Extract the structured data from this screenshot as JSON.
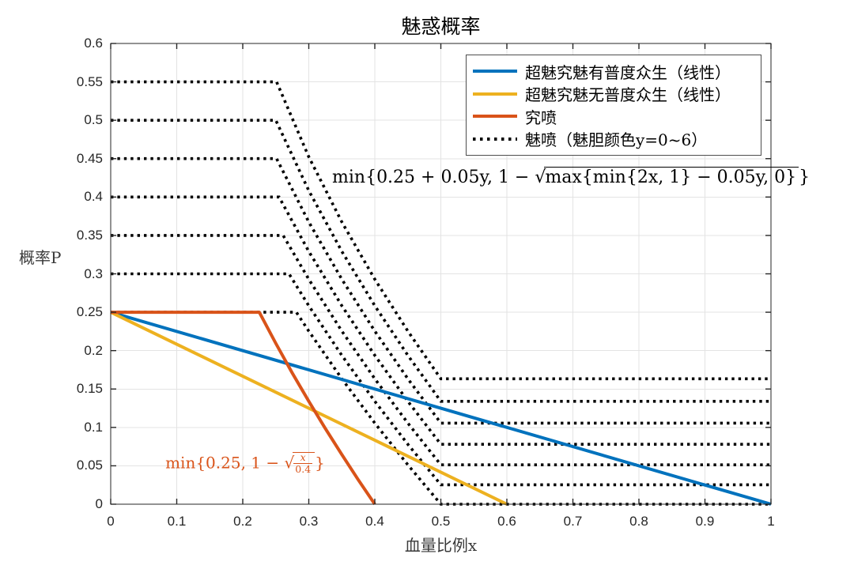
{
  "title": "魅惑概率",
  "axes": {
    "x": {
      "label": "血量比例x"
    },
    "y": {
      "label": "概率P"
    }
  },
  "annotations": {
    "main_formula": {
      "prefix": "min{0.25 + 0.05y, 1 − ",
      "sqrt_sign": "√",
      "radicand": "max{min{2x, 1} − 0.05y, 0}",
      "suffix": "}",
      "color": "#000000"
    },
    "orange_formula": {
      "prefix": "min{0.25, 1 − ",
      "sqrt_sign": "√",
      "frac_numerator": "x",
      "frac_denominator": "0.4",
      "suffix": "}",
      "color": "#d95319"
    }
  },
  "chart_data": {
    "type": "line",
    "title": "魅惑概率",
    "xlabel": "血量比例x",
    "ylabel": "概率P",
    "xlim": [
      0,
      1
    ],
    "ylim": [
      0,
      0.6
    ],
    "x_ticks": [
      0,
      0.1,
      0.2,
      0.3,
      0.4,
      0.5,
      0.6,
      0.7,
      0.8,
      0.9,
      1
    ],
    "y_ticks": [
      0,
      0.05,
      0.1,
      0.15,
      0.2,
      0.25,
      0.3,
      0.35,
      0.4,
      0.45,
      0.5,
      0.55,
      0.6
    ],
    "grid": true,
    "grid_color": "#e3e3e3",
    "axis_color": "#262626",
    "legend_position": "top-right",
    "series": [
      {
        "name": "超魅究魅有普度众生（线性）",
        "color": "#0072bd",
        "style": "solid",
        "points": [
          [
            0,
            0.25
          ],
          [
            1,
            0
          ]
        ]
      },
      {
        "name": "超魅究魅无普度众生（线性）",
        "color": "#edb120",
        "style": "solid",
        "points": [
          [
            0,
            0.25
          ],
          [
            0.6,
            0
          ]
        ]
      },
      {
        "name": "究喷",
        "color": "#d95319",
        "style": "solid",
        "formula": "min{0.25, 1 − sqrt(x/0.4)}",
        "points": [
          [
            0,
            0.25
          ],
          [
            0.225,
            0.25
          ],
          [
            0.25,
            0.2094
          ],
          [
            0.275,
            0.1708
          ],
          [
            0.3,
            0.134
          ],
          [
            0.325,
            0.0986
          ],
          [
            0.35,
            0.0646
          ],
          [
            0.375,
            0.0317
          ],
          [
            0.4,
            0
          ]
        ]
      },
      {
        "name": "魅喷（魅胆颜色y=0~6）",
        "color": "#000000",
        "style": "dotted",
        "formula": "min{0.25 + 0.05y, 1 − sqrt(max{min{2x,1} − 0.05y, 0})}",
        "curves": [
          {
            "y": 0,
            "points": [
              [
                0,
                0.25
              ],
              [
                0.28125,
                0.25
              ],
              [
                0.3,
                0.2254
              ],
              [
                0.35,
                0.1633
              ],
              [
                0.4,
                0.1056
              ],
              [
                0.45,
                0.0513
              ],
              [
                0.5,
                0
              ],
              [
                1,
                0
              ]
            ]
          },
          {
            "y": 1,
            "points": [
              [
                0,
                0.3
              ],
              [
                0.27,
                0.3
              ],
              [
                0.3,
                0.2584
              ],
              [
                0.35,
                0.1938
              ],
              [
                0.4,
                0.134
              ],
              [
                0.45,
                0.078
              ],
              [
                0.5,
                0.0253
              ],
              [
                1,
                0.0253
              ]
            ]
          },
          {
            "y": 2,
            "points": [
              [
                0,
                0.35
              ],
              [
                0.26125,
                0.35
              ],
              [
                0.3,
                0.2929
              ],
              [
                0.35,
                0.2254
              ],
              [
                0.4,
                0.1633
              ],
              [
                0.45,
                0.1056
              ],
              [
                0.5,
                0.0513
              ],
              [
                1,
                0.0513
              ]
            ]
          },
          {
            "y": 3,
            "points": [
              [
                0,
                0.4
              ],
              [
                0.255,
                0.4
              ],
              [
                0.3,
                0.3292
              ],
              [
                0.35,
                0.2584
              ],
              [
                0.4,
                0.1938
              ],
              [
                0.45,
                0.134
              ],
              [
                0.5,
                0.078
              ],
              [
                1,
                0.078
              ]
            ]
          },
          {
            "y": 4,
            "points": [
              [
                0,
                0.45
              ],
              [
                0.25125,
                0.45
              ],
              [
                0.3,
                0.3675
              ],
              [
                0.35,
                0.2929
              ],
              [
                0.4,
                0.2254
              ],
              [
                0.45,
                0.1633
              ],
              [
                0.5,
                0.1056
              ],
              [
                1,
                0.1056
              ]
            ]
          },
          {
            "y": 5,
            "points": [
              [
                0,
                0.5
              ],
              [
                0.25,
                0.5
              ],
              [
                0.3,
                0.4084
              ],
              [
                0.35,
                0.3292
              ],
              [
                0.4,
                0.2584
              ],
              [
                0.45,
                0.1938
              ],
              [
                0.5,
                0.134
              ],
              [
                1,
                0.134
              ]
            ]
          },
          {
            "y": 6,
            "points": [
              [
                0,
                0.55
              ],
              [
                0.25125,
                0.55
              ],
              [
                0.3,
                0.4523
              ],
              [
                0.35,
                0.3675
              ],
              [
                0.4,
                0.2929
              ],
              [
                0.45,
                0.2254
              ],
              [
                0.5,
                0.1633
              ],
              [
                1,
                0.1633
              ]
            ]
          }
        ]
      }
    ]
  }
}
